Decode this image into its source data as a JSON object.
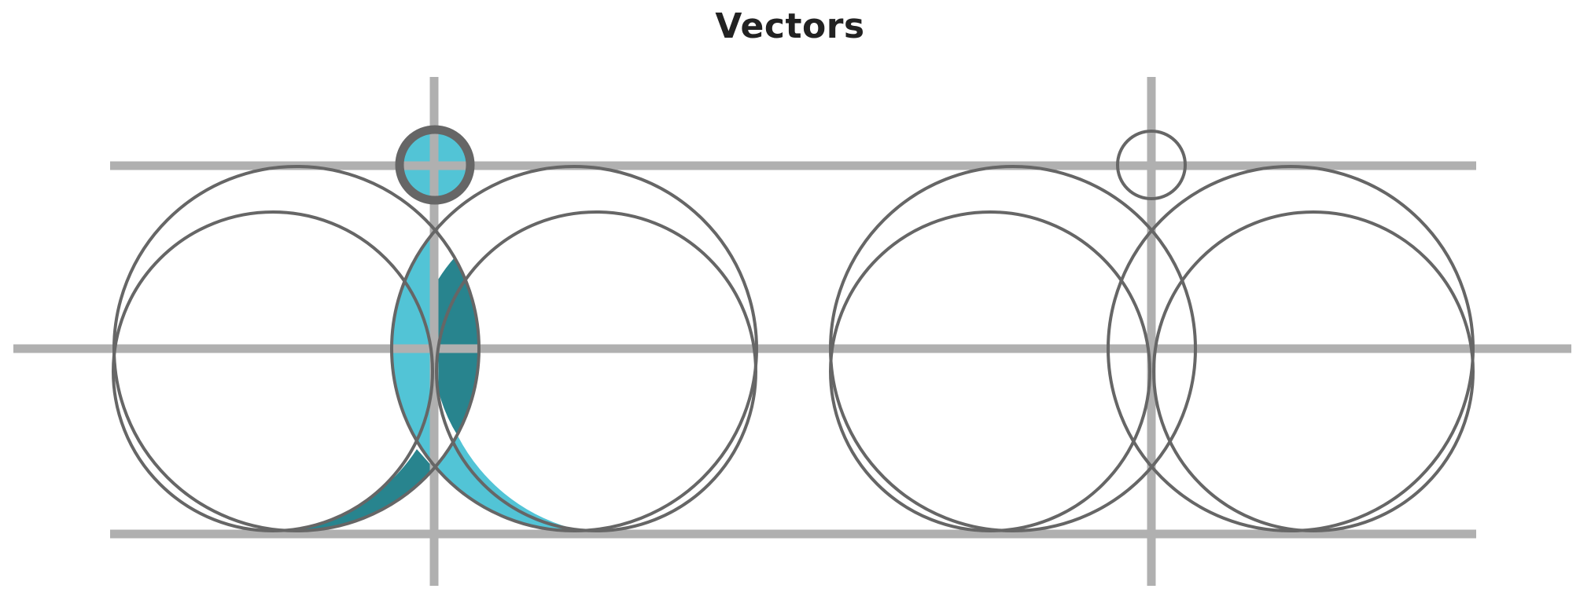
{
  "title": "Vectors",
  "colors": {
    "guide_line": "#b0b0b0",
    "stroke": "#666666",
    "fill_light": "#52c4d6",
    "fill_dark": "#28848e",
    "background": "#ffffff"
  }
}
